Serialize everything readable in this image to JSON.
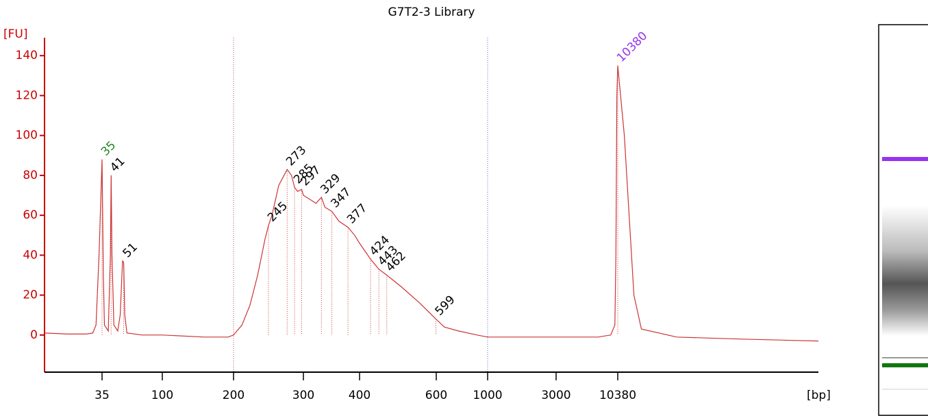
{
  "chart_data": {
    "type": "line",
    "title": "G7T2-3 Library",
    "y_label": "[FU]",
    "x_label": "[bp]",
    "ylim": [
      -18.6,
      149
    ],
    "yticks": [
      0,
      20,
      40,
      60,
      80,
      100,
      120,
      140
    ],
    "xlim": [
      20,
      17000
    ],
    "xticks": [
      35,
      100,
      200,
      300,
      400,
      600,
      1000,
      3000,
      10380
    ],
    "region_bp": [
      200,
      1000
    ],
    "series": [
      {
        "color": "#cc3333",
        "x": [
          20,
          25,
          30,
          32,
          33,
          34,
          35,
          35.8,
          36.5,
          39,
          40.5,
          41,
          41.6,
          43,
          46,
          48,
          50,
          51,
          52,
          54,
          70,
          100,
          150,
          190,
          200,
          210,
          220,
          230,
          240,
          245,
          250,
          260,
          273,
          280,
          285,
          290,
          297,
          300,
          310,
          320,
          329,
          335,
          347,
          360,
          377,
          390,
          400,
          424,
          443,
          462,
          500,
          550,
          599,
          650,
          750,
          900,
          1000,
          1500,
          3000,
          5000,
          7000,
          9000,
          9800,
          10000,
          10200,
          10380,
          10550,
          10800,
          11000,
          12000,
          14000,
          17000
        ],
        "values": [
          1,
          0.5,
          0.5,
          1,
          5,
          40,
          88,
          30,
          5,
          2,
          40,
          80,
          40,
          5,
          2,
          10,
          37,
          36,
          10,
          1,
          0,
          0,
          -1,
          -1,
          0,
          5,
          15,
          30,
          48,
          55,
          60,
          75,
          83,
          80,
          74,
          72,
          73,
          70,
          68,
          66,
          69,
          64,
          62,
          57,
          54,
          50,
          46,
          38,
          33,
          30,
          24,
          16,
          8,
          4,
          2,
          0,
          -1,
          -1,
          -1,
          -1,
          -1,
          0,
          5,
          40,
          120,
          135,
          100,
          20,
          3,
          -1,
          -2,
          -3
        ]
      }
    ],
    "peaks": {
      "bp": [
        35,
        41,
        51,
        245,
        273,
        285,
        297,
        329,
        347,
        377,
        424,
        443,
        462,
        599,
        10380
      ],
      "fu": [
        88,
        80,
        37,
        55,
        83,
        74,
        73,
        69,
        62,
        54,
        38,
        33,
        30,
        8,
        135
      ],
      "colors": [
        "#228822",
        "#000000",
        "#000000",
        "#000000",
        "#000000",
        "#000000",
        "#000000",
        "#000000",
        "#000000",
        "#000000",
        "#000000",
        "#000000",
        "#000000",
        "#000000",
        "#9933ee"
      ]
    }
  }
}
